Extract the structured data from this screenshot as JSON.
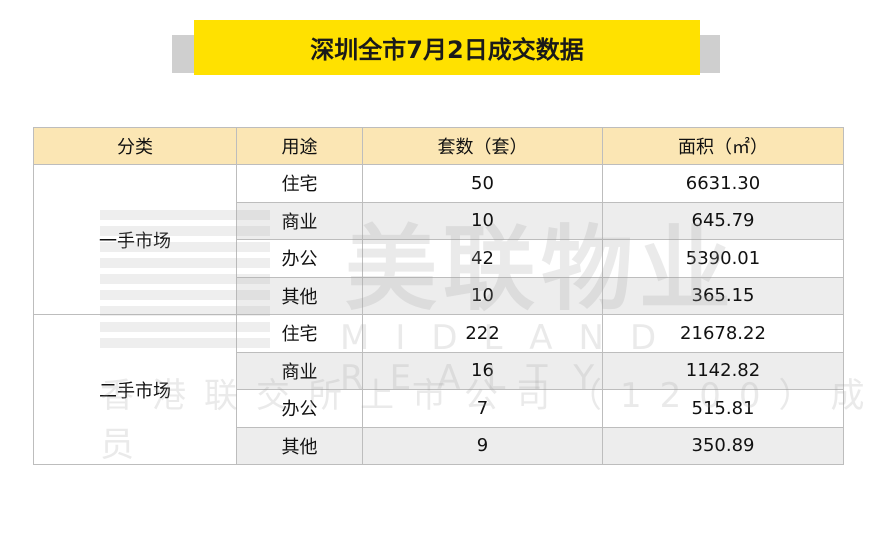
{
  "title": "深圳全市7月2日成交数据",
  "colors": {
    "title_bg": "#ffe100",
    "header_bg": "#fbe6b4",
    "band": "#cfcfcf"
  },
  "watermark": {
    "brand": "美联物业",
    "english": "MIDLAND REALTY",
    "note": "香港联交所上市公司（1200）成员"
  },
  "table": {
    "headers": [
      "分类",
      "用途",
      "套数（套）",
      "面积（㎡）"
    ],
    "groups": [
      {
        "category": "一手市场",
        "rows": [
          {
            "use": "住宅",
            "units": "50",
            "area": "6631.30"
          },
          {
            "use": "商业",
            "units": "10",
            "area": "645.79"
          },
          {
            "use": "办公",
            "units": "42",
            "area": "5390.01"
          },
          {
            "use": "其他",
            "units": "10",
            "area": "365.15"
          }
        ]
      },
      {
        "category": "二手市场",
        "rows": [
          {
            "use": "住宅",
            "units": "222",
            "area": "21678.22"
          },
          {
            "use": "商业",
            "units": "16",
            "area": "1142.82"
          },
          {
            "use": "办公",
            "units": "7",
            "area": "515.81"
          },
          {
            "use": "其他",
            "units": "9",
            "area": "350.89"
          }
        ]
      }
    ]
  }
}
